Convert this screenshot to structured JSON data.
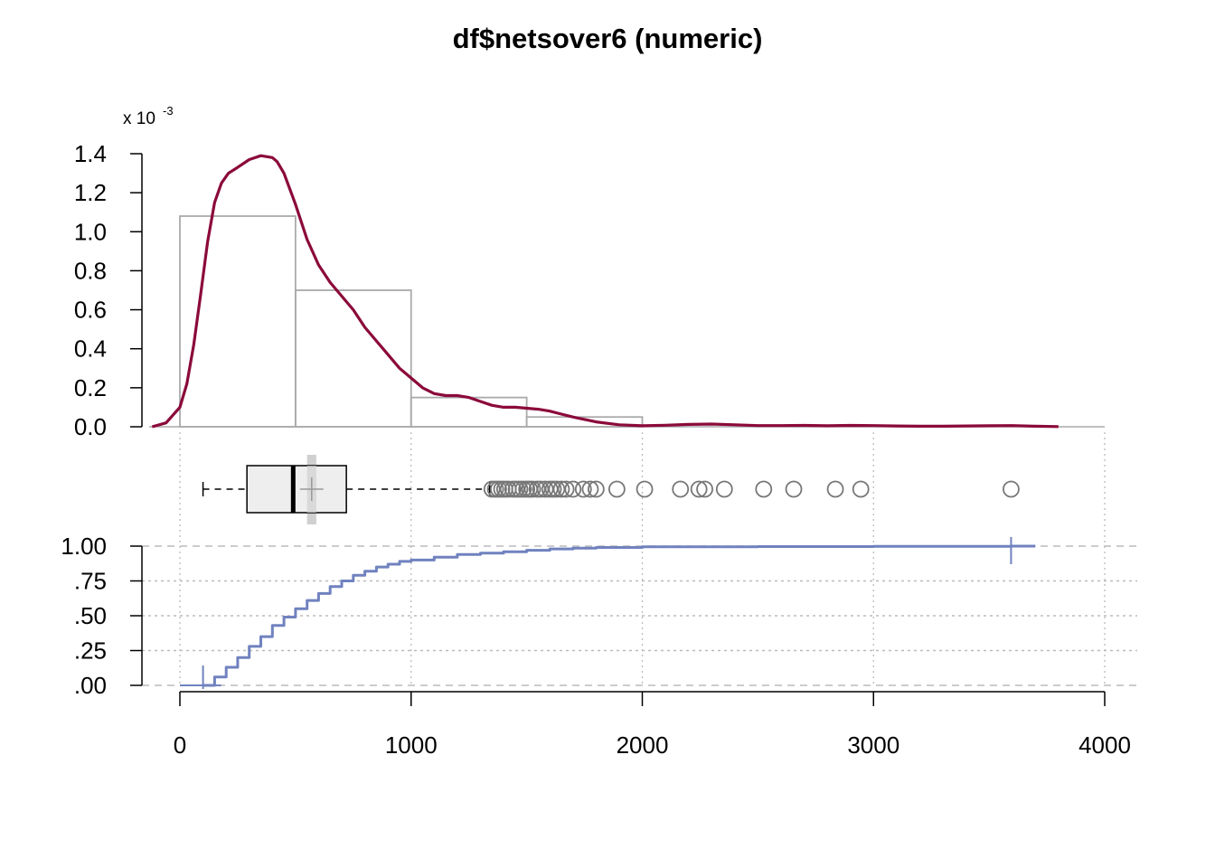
{
  "title": "df$netsover6 (numeric)",
  "colors": {
    "density": "#8B0A3A",
    "histogram": "#AAAAAA",
    "box_fill": "#EEEEEE",
    "ecdf": "#7082BF",
    "grid": "#BBBBBB",
    "outlier": "#777777"
  },
  "chart_data": [
    {
      "type": "bar",
      "panel": "histogram-density",
      "ylabel_multiplier": "x 10",
      "ylabel_exponent": "-3",
      "y_ticks": [
        "0.0",
        "0.2",
        "0.4",
        "0.6",
        "0.8",
        "1.0",
        "1.2",
        "1.4"
      ],
      "y_tick_values": [
        0,
        0.2,
        0.4,
        0.6,
        0.8,
        1.0,
        1.2,
        1.4
      ],
      "ylim": [
        0,
        1.4
      ],
      "bins": [
        {
          "from": 0,
          "to": 500,
          "density": 1.08
        },
        {
          "from": 500,
          "to": 1000,
          "density": 0.7
        },
        {
          "from": 1000,
          "to": 1500,
          "density": 0.15
        },
        {
          "from": 1500,
          "to": 2000,
          "density": 0.05
        },
        {
          "from": 2000,
          "to": 2500,
          "density": 0.0
        },
        {
          "from": 2500,
          "to": 3000,
          "density": 0.0
        },
        {
          "from": 3000,
          "to": 3500,
          "density": 0.0
        },
        {
          "from": 3500,
          "to": 4000,
          "density": 0.0
        }
      ],
      "density_curve": {
        "x": [
          -120,
          -60,
          0,
          30,
          60,
          90,
          120,
          150,
          180,
          210,
          250,
          300,
          350,
          400,
          420,
          450,
          500,
          550,
          600,
          650,
          700,
          750,
          800,
          850,
          900,
          950,
          1000,
          1050,
          1100,
          1150,
          1200,
          1250,
          1300,
          1350,
          1400,
          1450,
          1500,
          1550,
          1600,
          1650,
          1700,
          1800,
          1900,
          2000,
          2100,
          2200,
          2300,
          2400,
          2500,
          2600,
          2700,
          2800,
          2900,
          3000,
          3100,
          3200,
          3300,
          3400,
          3500,
          3600,
          3700,
          3800
        ],
        "y": [
          0.0,
          0.02,
          0.1,
          0.22,
          0.42,
          0.68,
          0.95,
          1.15,
          1.25,
          1.3,
          1.33,
          1.37,
          1.39,
          1.38,
          1.36,
          1.3,
          1.14,
          0.96,
          0.83,
          0.74,
          0.67,
          0.6,
          0.51,
          0.44,
          0.37,
          0.3,
          0.25,
          0.2,
          0.17,
          0.16,
          0.16,
          0.15,
          0.13,
          0.11,
          0.1,
          0.1,
          0.095,
          0.09,
          0.08,
          0.065,
          0.05,
          0.025,
          0.01,
          0.005,
          0.008,
          0.012,
          0.014,
          0.01,
          0.006,
          0.006,
          0.007,
          0.005,
          0.007,
          0.006,
          0.004,
          0.003,
          0.003,
          0.004,
          0.005,
          0.006,
          0.003,
          0.001
        ]
      }
    },
    {
      "type": "scatter",
      "panel": "boxplot",
      "whisker_low": 100,
      "q1": 290,
      "median": 490,
      "q3": 720,
      "whisker_high": 1340,
      "mean": 570,
      "mean_ci": [
        550,
        590
      ],
      "outliers": [
        1350,
        1365,
        1378,
        1392,
        1405,
        1420,
        1440,
        1455,
        1470,
        1485,
        1500,
        1512,
        1525,
        1545,
        1560,
        1580,
        1600,
        1615,
        1630,
        1650,
        1670,
        1700,
        1745,
        1775,
        1800,
        1890,
        2010,
        2165,
        2245,
        2270,
        2355,
        2525,
        2655,
        2835,
        2945,
        3595
      ]
    },
    {
      "type": "line",
      "panel": "ecdf",
      "y_ticks": [
        ".00",
        ".25",
        ".50",
        ".75",
        "1.00"
      ],
      "y_tick_values": [
        0,
        0.25,
        0.5,
        0.75,
        1.0
      ],
      "ylim": [
        0,
        1
      ],
      "x": [
        100,
        150,
        200,
        250,
        300,
        350,
        400,
        450,
        500,
        550,
        600,
        650,
        700,
        750,
        800,
        850,
        900,
        950,
        1000,
        1100,
        1200,
        1300,
        1400,
        1500,
        1600,
        1700,
        1800,
        2000,
        2500,
        3000,
        3595,
        3700
      ],
      "y": [
        0.0,
        0.06,
        0.13,
        0.2,
        0.28,
        0.35,
        0.43,
        0.49,
        0.55,
        0.61,
        0.66,
        0.71,
        0.75,
        0.79,
        0.82,
        0.85,
        0.87,
        0.89,
        0.9,
        0.92,
        0.94,
        0.95,
        0.96,
        0.97,
        0.98,
        0.985,
        0.99,
        0.995,
        0.997,
        0.998,
        1.0,
        1.0
      ],
      "min_marker": 100,
      "max_marker": 3595
    }
  ],
  "x_axis": {
    "xlim": [
      0,
      4000
    ],
    "ticks": [
      "0",
      "1000",
      "2000",
      "3000",
      "4000"
    ],
    "tick_values": [
      0,
      1000,
      2000,
      3000,
      4000
    ]
  }
}
